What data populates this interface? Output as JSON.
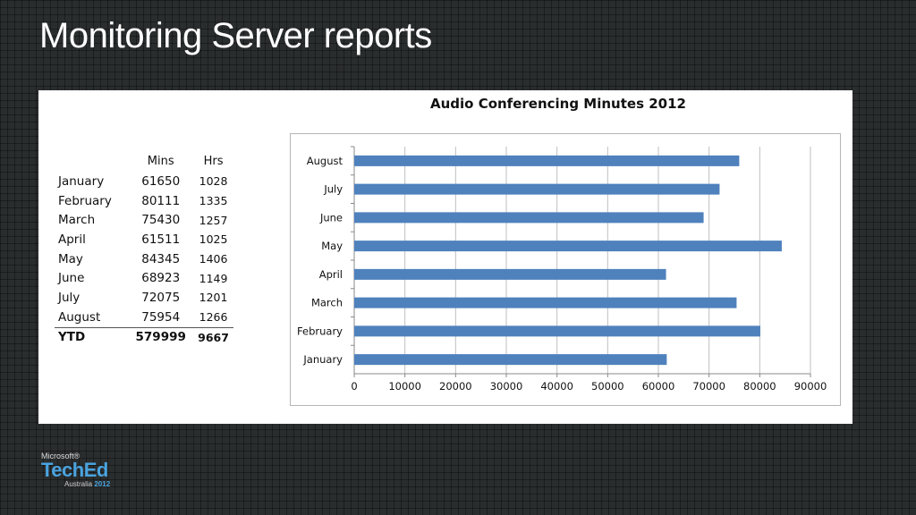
{
  "slide": {
    "title": "Monitoring Server reports"
  },
  "table": {
    "headers": [
      "",
      "Mins",
      "Hrs"
    ],
    "rows": [
      {
        "label": "January",
        "mins": "61650",
        "hrs": "1028"
      },
      {
        "label": "February",
        "mins": "80111",
        "hrs": "1335"
      },
      {
        "label": "March",
        "mins": "75430",
        "hrs": "1257"
      },
      {
        "label": "April",
        "mins": "61511",
        "hrs": "1025"
      },
      {
        "label": "May",
        "mins": "84345",
        "hrs": "1406"
      },
      {
        "label": "June",
        "mins": "68923",
        "hrs": "1149"
      },
      {
        "label": "July",
        "mins": "72075",
        "hrs": "1201"
      },
      {
        "label": "August",
        "mins": "75954",
        "hrs": "1266"
      }
    ],
    "total": {
      "label": "YTD",
      "mins": "579999",
      "hrs": "9667"
    }
  },
  "chart_data": {
    "type": "bar",
    "orientation": "horizontal",
    "title": "Audio Conferencing Minutes 2012",
    "categories": [
      "January",
      "February",
      "March",
      "April",
      "May",
      "June",
      "July",
      "August"
    ],
    "values": [
      61650,
      80111,
      75430,
      61511,
      84345,
      68923,
      72075,
      75954
    ],
    "xlim": [
      0,
      90000
    ],
    "xticks": [
      0,
      10000,
      20000,
      30000,
      40000,
      50000,
      60000,
      70000,
      80000,
      90000
    ],
    "grid": "vertical",
    "bar_color": "#4f81bd",
    "xlabel": "",
    "ylabel": ""
  },
  "logo": {
    "company": "Microsoft®",
    "name": "TechEd",
    "region": "Australia",
    "year": "2012"
  },
  "colors": {
    "background": "#2a2d2e",
    "bar": "#4f81bd",
    "logo_accent": "#4aa3df"
  }
}
